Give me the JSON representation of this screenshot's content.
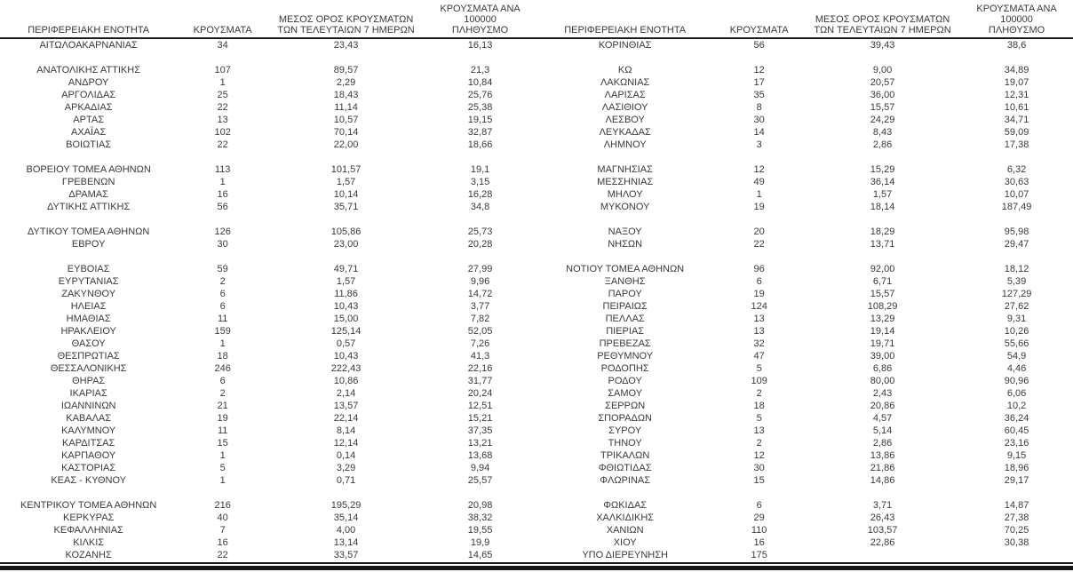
{
  "table": {
    "headers": {
      "region": "ΠΕΡΙΦΕΡΕΙΑΚΗ ΕΝΟΤΗΤΑ",
      "cases": "ΚΡΟΥΣΜΑΤΑ",
      "avg7_line1": "ΜΕΣΟΣ ΟΡΟΣ ΚΡΟΥΣΜΑΤΩΝ",
      "avg7_line2": "ΤΩΝ ΤΕΛΕΥΤΑΙΩΝ 7 ΗΜΕΡΩΝ",
      "per100k_line1": "ΚΡΟΥΣΜΑΤΑ ΑΝΑ 100000",
      "per100k_line2": "ΠΛΗΘΥΣΜΟ"
    },
    "left_rows": [
      [
        "ΑΙΤΩΛΟΑΚΑΡΝΑΝΙΑΣ",
        "34",
        "23,43",
        "16,13"
      ],
      null,
      [
        "ΑΝΑΤΟΛΙΚΗΣ ΑΤΤΙΚΗΣ",
        "107",
        "89,57",
        "21,3"
      ],
      [
        "ΑΝΔΡΟΥ",
        "1",
        "2,29",
        "10,84"
      ],
      [
        "ΑΡΓΟΛΙΔΑΣ",
        "25",
        "18,43",
        "25,76"
      ],
      [
        "ΑΡΚΑΔΙΑΣ",
        "22",
        "11,14",
        "25,38"
      ],
      [
        "ΑΡΤΑΣ",
        "13",
        "10,57",
        "19,15"
      ],
      [
        "ΑΧΑΪΑΣ",
        "102",
        "70,14",
        "32,87"
      ],
      [
        "ΒΟΙΩΤΙΑΣ",
        "22",
        "22,00",
        "18,66"
      ],
      null,
      [
        "ΒΟΡΕΙΟΥ ΤΟΜΕΑ ΑΘΗΝΩΝ",
        "113",
        "101,57",
        "19,1"
      ],
      [
        "ΓΡΕΒΕΝΩΝ",
        "1",
        "1,57",
        "3,15"
      ],
      [
        "ΔΡΑΜΑΣ",
        "16",
        "10,14",
        "16,28"
      ],
      [
        "ΔΥΤΙΚΗΣ ΑΤΤΙΚΗΣ",
        "56",
        "35,71",
        "34,8"
      ],
      null,
      [
        "ΔΥΤΙΚΟΥ ΤΟΜΕΑ ΑΘΗΝΩΝ",
        "126",
        "105,86",
        "25,73"
      ],
      [
        "ΕΒΡΟΥ",
        "30",
        "23,00",
        "20,28"
      ],
      null,
      [
        "ΕΥΒΟΙΑΣ",
        "59",
        "49,71",
        "27,99"
      ],
      [
        "ΕΥΡΥΤΑΝΙΑΣ",
        "2",
        "1,57",
        "9,96"
      ],
      [
        "ΖΑΚΥΝΘΟΥ",
        "6",
        "11,86",
        "14,72"
      ],
      [
        "ΗΛΕΙΑΣ",
        "6",
        "10,43",
        "3,77"
      ],
      [
        "ΗΜΑΘΙΑΣ",
        "11",
        "15,00",
        "7,82"
      ],
      [
        "ΗΡΑΚΛΕΙΟΥ",
        "159",
        "125,14",
        "52,05"
      ],
      [
        "ΘΑΣΟΥ",
        "1",
        "0,57",
        "7,26"
      ],
      [
        "ΘΕΣΠΡΩΤΙΑΣ",
        "18",
        "10,43",
        "41,3"
      ],
      [
        "ΘΕΣΣΑΛΟΝΙΚΗΣ",
        "246",
        "222,43",
        "22,16"
      ],
      [
        "ΘΗΡΑΣ",
        "6",
        "10,86",
        "31,77"
      ],
      [
        "ΙΚΑΡΙΑΣ",
        "2",
        "2,14",
        "20,24"
      ],
      [
        "ΙΩΑΝΝΙΝΩΝ",
        "21",
        "13,57",
        "12,51"
      ],
      [
        "ΚΑΒΑΛΑΣ",
        "19",
        "22,14",
        "15,21"
      ],
      [
        "ΚΑΛΥΜΝΟΥ",
        "11",
        "8,14",
        "37,35"
      ],
      [
        "ΚΑΡΔΙΤΣΑΣ",
        "15",
        "12,14",
        "13,21"
      ],
      [
        "ΚΑΡΠΑΘΟΥ",
        "1",
        "0,14",
        "13,68"
      ],
      [
        "ΚΑΣΤΟΡΙΑΣ",
        "5",
        "3,29",
        "9,94"
      ],
      [
        "ΚΕΑΣ - ΚΥΘΝΟΥ",
        "1",
        "0,71",
        "25,57"
      ],
      null,
      [
        "ΚΕΝΤΡΙΚΟΥ ΤΟΜΕΑ ΑΘΗΝΩΝ",
        "216",
        "195,29",
        "20,98"
      ],
      [
        "ΚΕΡΚΥΡΑΣ",
        "40",
        "35,14",
        "38,32"
      ],
      [
        "ΚΕΦΑΛΛΗΝΙΑΣ",
        "7",
        "4,00",
        "19,55"
      ],
      [
        "ΚΙΛΚΙΣ",
        "16",
        "13,14",
        "19,9"
      ],
      [
        "ΚΟΖΑΝΗΣ",
        "22",
        "33,57",
        "14,65"
      ]
    ],
    "right_rows": [
      [
        "ΚΟΡΙΝΘΙΑΣ",
        "56",
        "39,43",
        "38,6"
      ],
      null,
      [
        "ΚΩ",
        "12",
        "9,00",
        "34,89"
      ],
      [
        "ΛΑΚΩΝΙΑΣ",
        "17",
        "20,57",
        "19,07"
      ],
      [
        "ΛΑΡΙΣΑΣ",
        "35",
        "36,00",
        "12,31"
      ],
      [
        "ΛΑΣΙΘΙΟΥ",
        "8",
        "15,57",
        "10,61"
      ],
      [
        "ΛΕΣΒΟΥ",
        "30",
        "24,29",
        "34,71"
      ],
      [
        "ΛΕΥΚΑΔΑΣ",
        "14",
        "8,43",
        "59,09"
      ],
      [
        "ΛΗΜΝΟΥ",
        "3",
        "2,86",
        "17,38"
      ],
      null,
      [
        "ΜΑΓΝΗΣΙΑΣ",
        "12",
        "15,29",
        "6,32"
      ],
      [
        "ΜΕΣΣΗΝΙΑΣ",
        "49",
        "36,14",
        "30,63"
      ],
      [
        "ΜΗΛΟΥ",
        "1",
        "1,57",
        "10,07"
      ],
      [
        "ΜΥΚΟΝΟΥ",
        "19",
        "18,14",
        "187,49"
      ],
      null,
      [
        "ΝΑΞΟΥ",
        "20",
        "18,29",
        "95,98"
      ],
      [
        "ΝΗΣΩΝ",
        "22",
        "13,71",
        "29,47"
      ],
      null,
      [
        "ΝΟΤΙΟΥ ΤΟΜΕΑ ΑΘΗΝΩΝ",
        "96",
        "92,00",
        "18,12"
      ],
      [
        "ΞΑΝΘΗΣ",
        "6",
        "6,71",
        "5,39"
      ],
      [
        "ΠΑΡΟΥ",
        "19",
        "15,57",
        "127,29"
      ],
      [
        "ΠΕΙΡΑΙΩΣ",
        "124",
        "108,29",
        "27,62"
      ],
      [
        "ΠΕΛΛΑΣ",
        "13",
        "13,29",
        "9,31"
      ],
      [
        "ΠΙΕΡΙΑΣ",
        "13",
        "19,14",
        "10,26"
      ],
      [
        "ΠΡΕΒΕΖΑΣ",
        "32",
        "19,71",
        "55,66"
      ],
      [
        "ΡΕΘΥΜΝΟΥ",
        "47",
        "39,00",
        "54,9"
      ],
      [
        "ΡΟΔΟΠΗΣ",
        "5",
        "6,86",
        "4,46"
      ],
      [
        "ΡΟΔΟΥ",
        "109",
        "80,00",
        "90,96"
      ],
      [
        "ΣΑΜΟΥ",
        "2",
        "2,43",
        "6,06"
      ],
      [
        "ΣΕΡΡΩΝ",
        "18",
        "20,86",
        "10,2"
      ],
      [
        "ΣΠΟΡΑΔΩΝ",
        "5",
        "4,57",
        "36,24"
      ],
      [
        "ΣΥΡΟΥ",
        "13",
        "5,14",
        "60,45"
      ],
      [
        "ΤΗΝΟΥ",
        "2",
        "2,86",
        "23,16"
      ],
      [
        "ΤΡΙΚΑΛΩΝ",
        "12",
        "13,86",
        "9,15"
      ],
      [
        "ΦΘΙΩΤΙΔΑΣ",
        "30",
        "21,86",
        "18,96"
      ],
      [
        "ΦΛΩΡΙΝΑΣ",
        "15",
        "14,86",
        "29,17"
      ],
      null,
      [
        "ΦΩΚΙΔΑΣ",
        "6",
        "3,71",
        "14,87"
      ],
      [
        "ΧΑΛΚΙΔΙΚΗΣ",
        "29",
        "26,43",
        "27,38"
      ],
      [
        "ΧΑΝΙΩΝ",
        "110",
        "103,57",
        "70,25"
      ],
      [
        "ΧΙΟΥ",
        "16",
        "22,86",
        "30,38"
      ],
      [
        "ΥΠΟ ΔΙΕΡΕΥΝΗΣΗ",
        "175",
        "",
        ""
      ]
    ]
  },
  "colors": {
    "text": "#3a3a3a",
    "rule": "#1c1c1c",
    "background": "#ffffff"
  }
}
